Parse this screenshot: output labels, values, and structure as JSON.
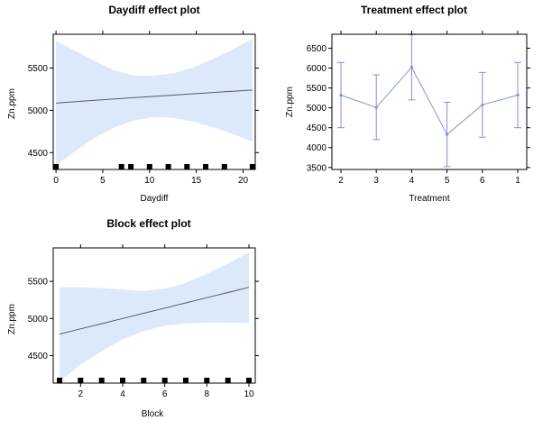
{
  "chart_data": [
    {
      "type": "line",
      "title": "Daydiff effect plot",
      "xlabel": "Daydiff",
      "ylabel": "Zn.ppm",
      "xlim": [
        -0.3,
        21.3
      ],
      "ylim": [
        4300,
        5900
      ],
      "x_ticks": [
        0,
        5,
        10,
        15,
        20
      ],
      "y_ticks": [
        4500,
        5000,
        5500
      ],
      "band_color": "#dbe9fb",
      "line_color": "#5a5a5a",
      "x": [
        0,
        2.1,
        4.2,
        6.3,
        8.4,
        10.5,
        12.6,
        14.7,
        16.8,
        18.9,
        21
      ],
      "fit": [
        5085,
        5102,
        5118,
        5134,
        5150,
        5165,
        5180,
        5196,
        5211,
        5226,
        5240
      ],
      "lower": [
        4350,
        4520,
        4680,
        4800,
        4885,
        4920,
        4910,
        4865,
        4800,
        4720,
        4630
      ],
      "upper": [
        5820,
        5700,
        5580,
        5470,
        5410,
        5410,
        5440,
        5510,
        5610,
        5720,
        5850
      ],
      "rug": [
        0,
        7,
        8,
        10,
        12,
        14,
        16,
        18,
        21
      ]
    },
    {
      "type": "line",
      "title": "Treatment effect plot",
      "xlabel": "Treatment",
      "ylabel": "Zn.ppm",
      "ylim": [
        3450,
        6850
      ],
      "y_ticks": [
        3500,
        4000,
        4500,
        5000,
        5500,
        6000,
        6500
      ],
      "categories": [
        "2",
        "3",
        "4",
        "5",
        "6",
        "1"
      ],
      "values": [
        5320,
        5010,
        6020,
        4330,
        5075,
        5320
      ],
      "lower": [
        4500,
        4200,
        5200,
        3520,
        4260,
        4500
      ],
      "upper": [
        6140,
        5830,
        6840,
        5140,
        5890,
        6140
      ],
      "line_color": "#7f95cf",
      "bar_color": "#8c8cd2"
    },
    {
      "type": "line",
      "title": "Block effect plot",
      "xlabel": "Block",
      "ylabel": "Zn.ppm",
      "xlim": [
        0.7,
        10.3
      ],
      "ylim": [
        4130,
        5950
      ],
      "x_ticks": [
        2,
        4,
        6,
        8,
        10
      ],
      "y_ticks": [
        4500,
        5000,
        5500
      ],
      "band_color": "#dbe9fb",
      "line_color": "#5a5a5a",
      "x": [
        1,
        2,
        3,
        4,
        5,
        6,
        7,
        8,
        9,
        10
      ],
      "fit": [
        4790,
        4860,
        4930,
        5000,
        5070,
        5140,
        5210,
        5280,
        5350,
        5420
      ],
      "lower": [
        4150,
        4380,
        4560,
        4720,
        4830,
        4900,
        4935,
        4945,
        4945,
        4940
      ],
      "upper": [
        5420,
        5420,
        5410,
        5390,
        5370,
        5400,
        5480,
        5600,
        5740,
        5890
      ],
      "rug": [
        1,
        2,
        3,
        4,
        5,
        6,
        7,
        8,
        9,
        10
      ]
    }
  ]
}
